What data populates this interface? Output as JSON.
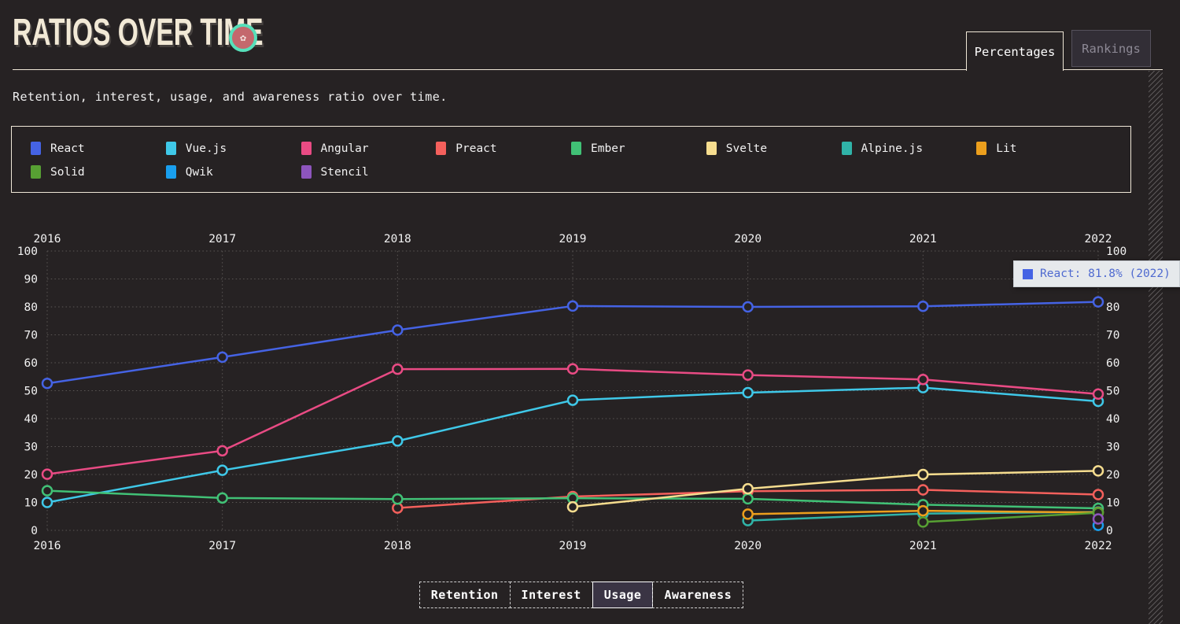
{
  "header": {
    "title": "Ratios Over Time",
    "logo": "state-of-js-badge",
    "subtitle": "Retention, interest, usage, and awareness ratio over time.",
    "tabs": [
      {
        "label": "Percentages",
        "active": true
      },
      {
        "label": "Rankings",
        "active": false
      }
    ]
  },
  "tooltip": {
    "series": "React",
    "text": "React: 81.8% (2022)",
    "color": "#4563e4"
  },
  "controls": {
    "buttons": [
      {
        "label": "Retention",
        "active": false
      },
      {
        "label": "Interest",
        "active": false
      },
      {
        "label": "Usage",
        "active": true
      },
      {
        "label": "Awareness",
        "active": false
      }
    ]
  },
  "colors": {
    "background": "#262223",
    "title_text": "#f2e9d6",
    "axis_text": "#f2f2f2",
    "gridline": "#5a5654",
    "tooltip_bg": "#e6e9ec",
    "tooltip_text": "#4f6ad0",
    "logo_ring": "#57e0ba",
    "logo_fill": "#c4686d"
  },
  "chart_data": {
    "type": "line",
    "title": "Ratios Over Time",
    "metric": "Usage",
    "unit": "%",
    "x": [
      2016,
      2017,
      2018,
      2019,
      2020,
      2021,
      2022
    ],
    "ylim": [
      0,
      100
    ],
    "y_ticks": [
      0,
      10,
      20,
      30,
      40,
      50,
      60,
      70,
      80,
      90,
      100
    ],
    "grid": "dotted",
    "legend_position": "top",
    "series": [
      {
        "name": "React",
        "color": "#4563e4",
        "values": [
          52.6,
          62.0,
          71.7,
          80.3,
          80.0,
          80.2,
          81.8
        ]
      },
      {
        "name": "Vue.js",
        "color": "#3fc8e8",
        "values": [
          10.0,
          21.5,
          32.0,
          46.6,
          49.3,
          51.1,
          46.2
        ]
      },
      {
        "name": "Angular",
        "color": "#e94b84",
        "values": [
          20.1,
          28.5,
          57.7,
          57.8,
          55.6,
          54.0,
          48.8
        ]
      },
      {
        "name": "Preact",
        "color": "#f4605c",
        "values": [
          null,
          null,
          8.0,
          12.1,
          14.0,
          14.5,
          12.8
        ]
      },
      {
        "name": "Ember",
        "color": "#41c176",
        "values": [
          14.2,
          11.6,
          11.2,
          11.5,
          11.3,
          9.2,
          7.9
        ]
      },
      {
        "name": "Svelte",
        "color": "#f6dd8f",
        "values": [
          null,
          null,
          null,
          8.4,
          14.9,
          20.0,
          21.3
        ]
      },
      {
        "name": "Alpine.js",
        "color": "#30b3a8",
        "values": [
          null,
          null,
          null,
          null,
          3.5,
          6.0,
          6.6
        ]
      },
      {
        "name": "Lit",
        "color": "#ec9f1d",
        "values": [
          null,
          null,
          null,
          null,
          5.8,
          7.0,
          6.4
        ]
      },
      {
        "name": "Solid",
        "color": "#57a033",
        "values": [
          null,
          null,
          null,
          null,
          null,
          3.0,
          6.3
        ]
      },
      {
        "name": "Qwik",
        "color": "#199fee",
        "values": [
          null,
          null,
          null,
          null,
          null,
          null,
          1.8
        ]
      },
      {
        "name": "Stencil",
        "color": "#8d55bd",
        "values": [
          null,
          null,
          null,
          null,
          null,
          null,
          4.1
        ]
      }
    ]
  }
}
